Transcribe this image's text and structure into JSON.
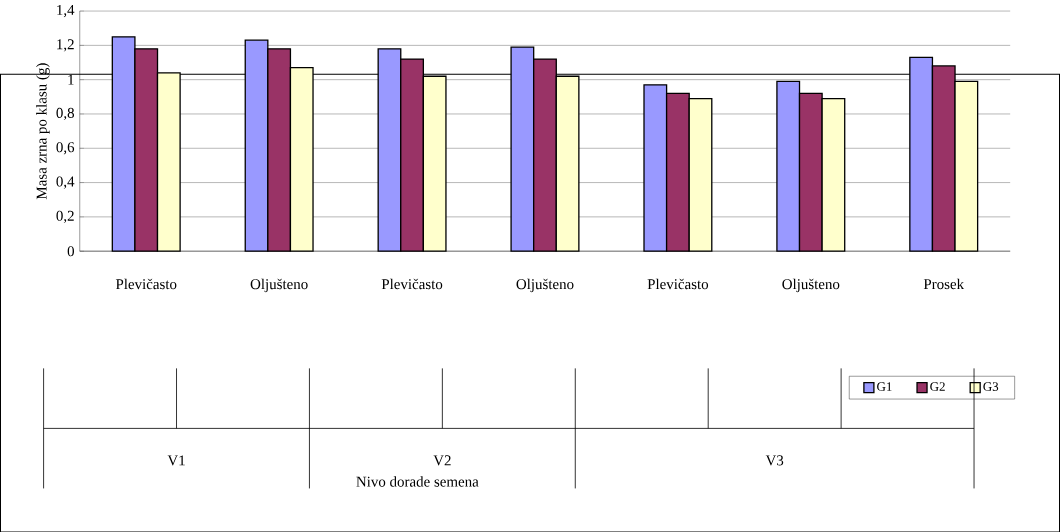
{
  "chart_data": {
    "type": "bar",
    "ylabel": "Masa zrna po klasu (g)",
    "categories": [
      "Plevičasto",
      "Oljušteno",
      "Plevičasto",
      "Oljušteno",
      "Plevičasto",
      "Oljušteno",
      "Prosek"
    ],
    "annotations": [
      "V1",
      "V2",
      "V3",
      "Nivo dorade semena"
    ],
    "series": [
      {
        "name": "G1",
        "color": "#9999ff",
        "values": [
          1.25,
          1.23,
          1.18,
          1.19,
          0.97,
          0.99,
          1.13
        ]
      },
      {
        "name": "G2",
        "color": "#993366",
        "values": [
          1.18,
          1.18,
          1.12,
          1.12,
          0.92,
          0.92,
          1.08
        ]
      },
      {
        "name": "G3",
        "color": "#ffffcc",
        "values": [
          1.04,
          1.07,
          1.02,
          1.02,
          0.89,
          0.89,
          0.99
        ]
      }
    ],
    "ylim": [
      0,
      1.4
    ],
    "yticks": [
      0,
      {
        "value": 0.2,
        "label": "0,2"
      },
      {
        "value": 0.4,
        "label": "0,4"
      },
      {
        "value": 0.6,
        "label": "0,6"
      },
      {
        "value": 0.8,
        "label": "0,8"
      },
      1,
      {
        "value": 1.2,
        "label": "1,2"
      },
      {
        "value": 1.4,
        "label": "1,4"
      }
    ],
    "grid": "y",
    "legend": "bottom right"
  }
}
